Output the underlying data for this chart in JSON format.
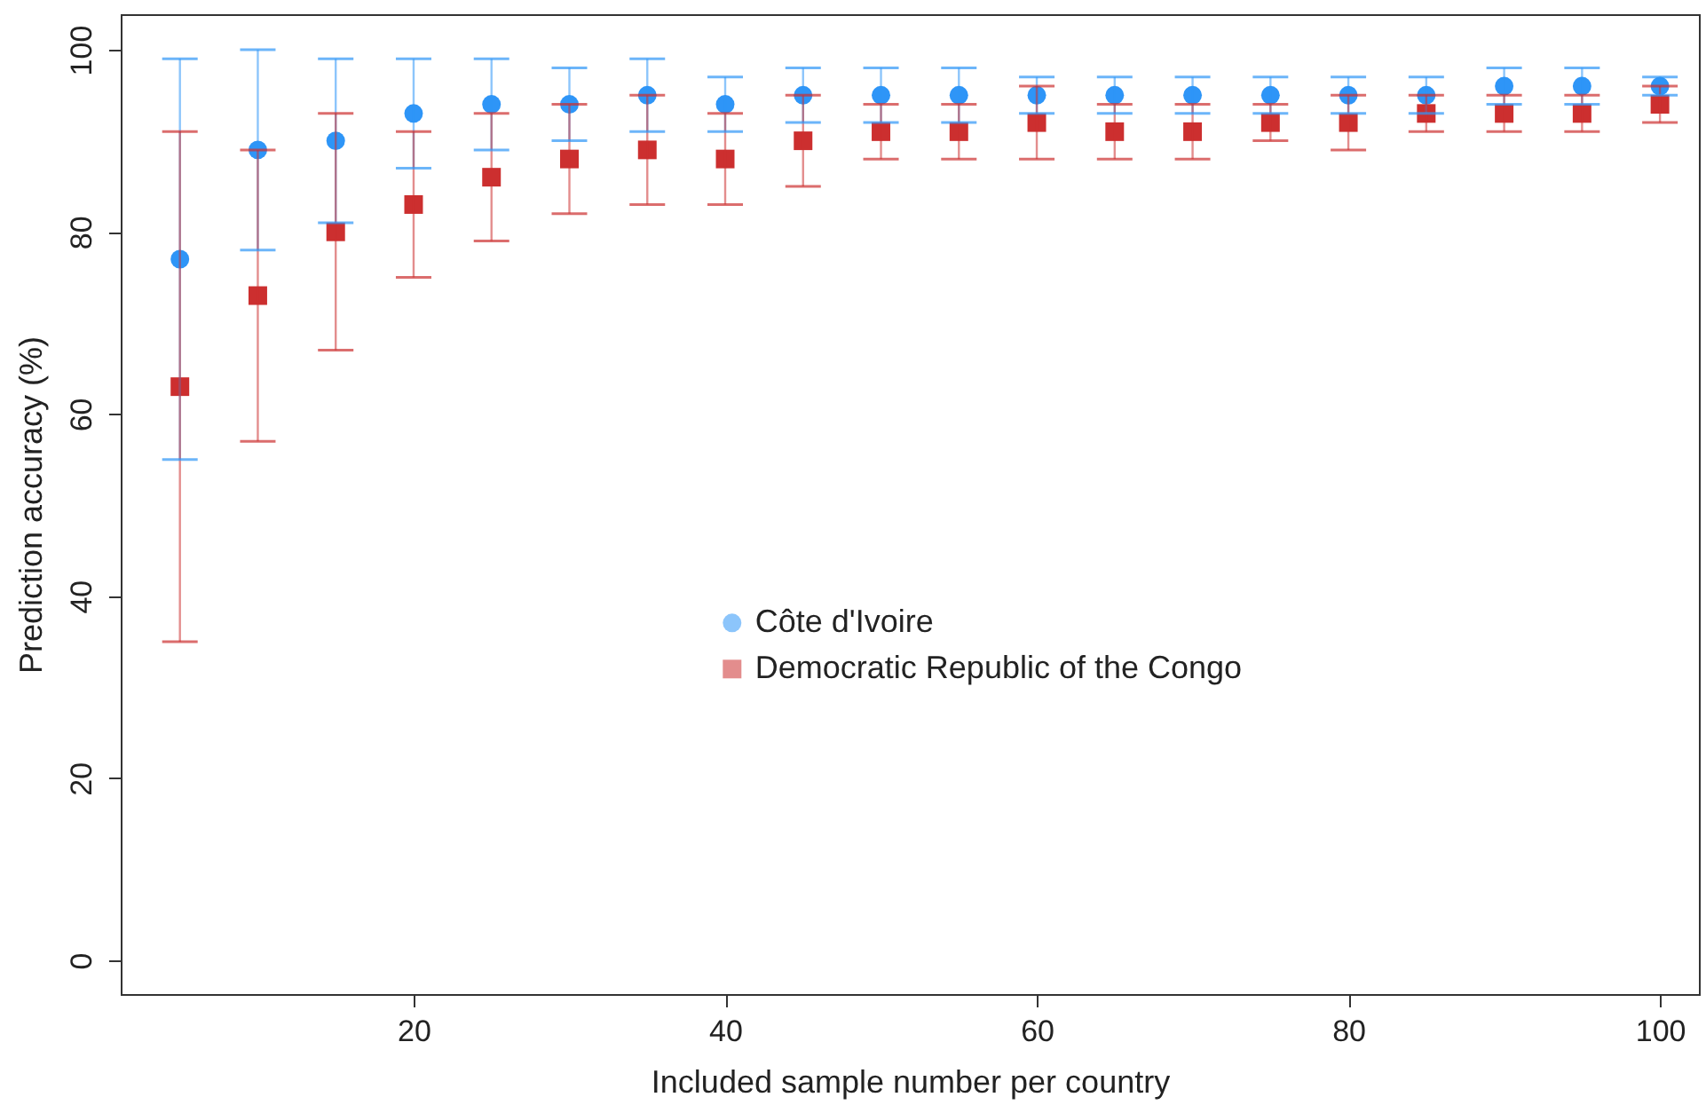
{
  "chart_data": {
    "type": "scatter",
    "xlabel": "Included sample number per country",
    "ylabel": "Prediction accuracy (%)",
    "x": [
      5,
      10,
      15,
      20,
      25,
      30,
      35,
      40,
      45,
      50,
      55,
      60,
      65,
      70,
      75,
      80,
      85,
      90,
      95,
      100
    ],
    "xlim": [
      1.2,
      102.5
    ],
    "xticks": [
      20,
      40,
      60,
      80,
      100
    ],
    "ylim": [
      -3.7,
      103.9
    ],
    "yticks": [
      0,
      20,
      40,
      60,
      80,
      100
    ],
    "grid": false,
    "legend": "center",
    "series": [
      {
        "name": "Côte d'Ivoire",
        "color": "#2e95f7",
        "marker": "circle",
        "values": [
          77,
          89,
          90,
          93,
          94,
          94,
          95,
          94,
          95,
          95,
          95,
          95,
          95,
          95,
          95,
          95,
          95,
          96,
          96,
          96
        ],
        "errors": [
          [
            55,
            99
          ],
          [
            78,
            100
          ],
          [
            81,
            99
          ],
          [
            87,
            99
          ],
          [
            89,
            99
          ],
          [
            90,
            98
          ],
          [
            91,
            99
          ],
          [
            91,
            97
          ],
          [
            92,
            98
          ],
          [
            92,
            98
          ],
          [
            92,
            98
          ],
          [
            93,
            97
          ],
          [
            93,
            97
          ],
          [
            93,
            97
          ],
          [
            93,
            97
          ],
          [
            93,
            97
          ],
          [
            93,
            97
          ],
          [
            94,
            98
          ],
          [
            94,
            98
          ],
          [
            95,
            97
          ]
        ]
      },
      {
        "name": "Democratic Republic of the Congo",
        "color": "#cc2f2f",
        "marker": "square",
        "values": [
          63,
          73,
          80,
          83,
          86,
          88,
          89,
          88,
          90,
          91,
          91,
          92,
          91,
          91,
          92,
          92,
          93,
          93,
          93,
          94
        ],
        "errors": [
          [
            35,
            91
          ],
          [
            57,
            89
          ],
          [
            67,
            93
          ],
          [
            75,
            91
          ],
          [
            79,
            93
          ],
          [
            82,
            94
          ],
          [
            83,
            95
          ],
          [
            83,
            93
          ],
          [
            85,
            95
          ],
          [
            88,
            94
          ],
          [
            88,
            94
          ],
          [
            88,
            96
          ],
          [
            88,
            94
          ],
          [
            88,
            94
          ],
          [
            90,
            94
          ],
          [
            89,
            95
          ],
          [
            91,
            95
          ],
          [
            91,
            95
          ],
          [
            91,
            95
          ],
          [
            92,
            96
          ]
        ]
      }
    ]
  }
}
